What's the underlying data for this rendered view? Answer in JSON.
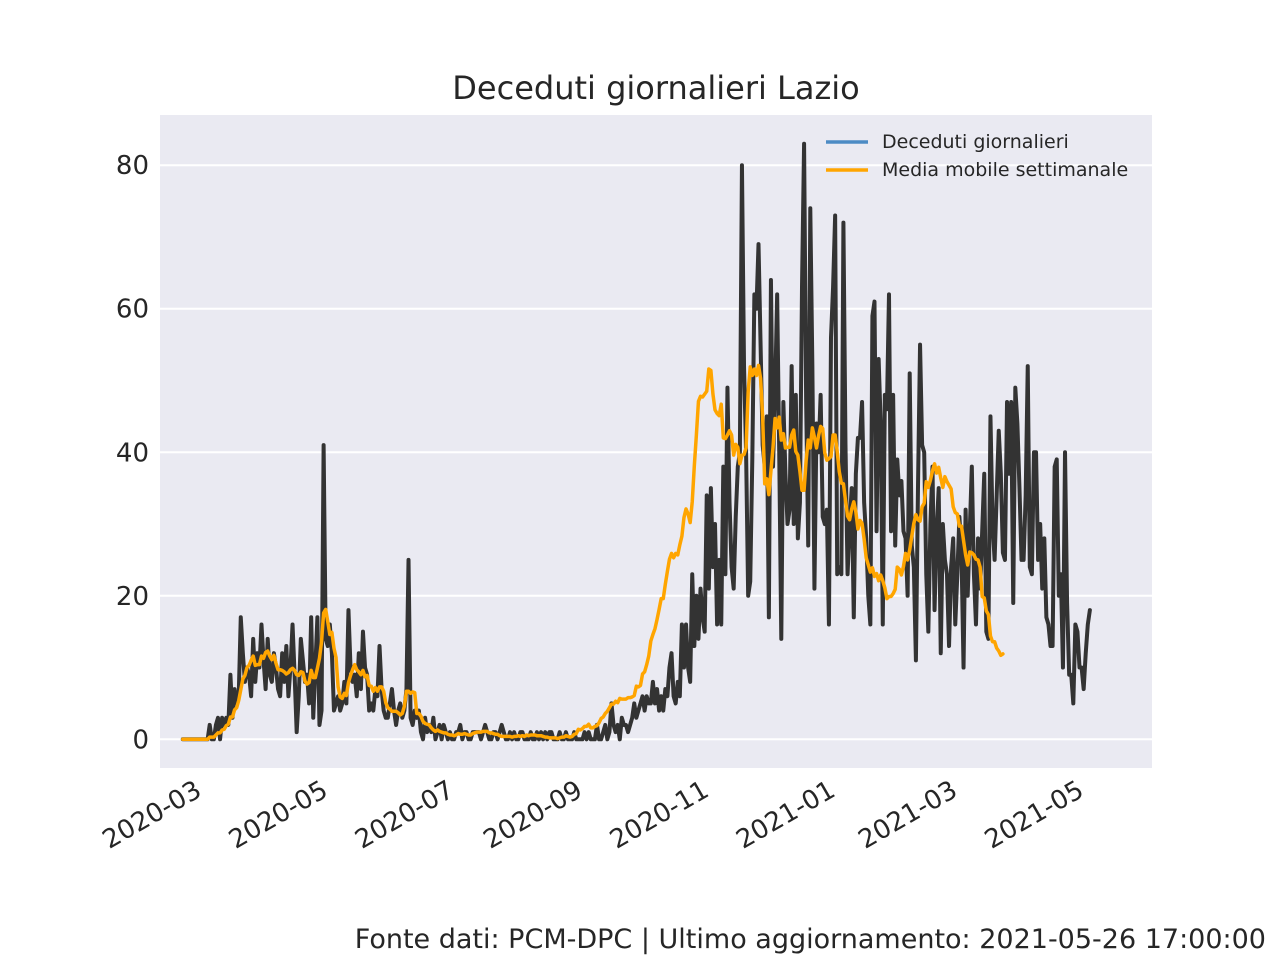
{
  "chart_data": {
    "type": "line",
    "title": "Deceduti giornalieri Lazio",
    "xlabel": "",
    "ylabel": "",
    "x_start": "2020-02-24",
    "x_end": "2021-05-26",
    "xlim": [
      "2020-02-13",
      "2021-06-06"
    ],
    "ylim": [
      -4,
      87
    ],
    "y_ticks": [
      0,
      20,
      40,
      60,
      80
    ],
    "x_ticks": [
      "2020-03",
      "2020-05",
      "2020-07",
      "2020-09",
      "2020-11",
      "2021-01",
      "2021-03",
      "2021-05"
    ],
    "grid": true,
    "legend_position": "top-right",
    "colors": {
      "plot_bg": "#eaeaf2",
      "daily": "#333333",
      "moving_avg": "#ffa500",
      "legend_daily": "#4c8bc4"
    },
    "series": [
      {
        "name": "Deceduti giornalieri",
        "values": [
          0,
          0,
          0,
          0,
          0,
          0,
          0,
          0,
          0,
          0,
          0,
          0,
          0,
          2,
          0,
          0,
          2,
          3,
          0,
          3,
          2,
          3,
          2,
          9,
          3,
          7,
          5,
          6,
          17,
          12,
          8,
          10,
          9,
          6,
          14,
          8,
          12,
          10,
          16,
          11,
          7,
          14,
          9,
          8,
          12,
          10,
          7,
          6,
          12,
          8,
          13,
          6,
          10,
          16,
          9,
          1,
          6,
          14,
          11,
          8,
          9,
          5,
          17,
          3,
          10,
          17,
          2,
          4,
          41,
          14,
          13,
          16,
          12,
          4,
          5,
          6,
          4,
          5,
          8,
          5,
          18,
          10,
          8,
          9,
          6,
          12,
          7,
          15,
          10,
          9,
          4,
          5,
          4,
          7,
          6,
          13,
          7,
          4,
          3,
          3,
          5,
          7,
          4,
          2,
          4,
          5,
          3,
          4,
          7,
          25,
          3,
          2,
          4,
          3,
          4,
          1,
          0,
          3,
          1,
          2,
          1,
          3,
          0,
          1,
          2,
          0,
          2,
          1,
          0,
          1,
          0,
          0,
          1,
          1,
          2,
          0,
          1,
          1,
          0,
          0,
          1,
          1,
          1,
          1,
          0,
          1,
          2,
          1,
          0,
          0,
          1,
          1,
          0,
          1,
          2,
          1,
          0,
          0,
          1,
          0,
          1,
          0,
          0,
          1,
          1,
          0,
          0,
          0,
          1,
          0,
          0,
          1,
          0,
          1,
          0,
          1,
          0,
          1,
          1,
          0,
          0,
          0,
          1,
          0,
          0,
          1,
          0,
          0,
          0,
          1,
          0,
          0,
          0,
          0,
          1,
          0,
          1,
          0,
          0,
          0,
          2,
          0,
          0,
          1,
          2,
          0,
          1,
          5,
          2,
          1,
          2,
          0,
          3,
          2,
          2,
          1,
          2,
          3,
          5,
          3,
          4,
          5,
          6,
          4,
          6,
          5,
          5,
          8,
          5,
          7,
          4,
          6,
          4,
          7,
          6,
          10,
          12,
          6,
          5,
          8,
          6,
          16,
          10,
          16,
          10,
          8,
          23,
          13,
          20,
          14,
          21,
          17,
          15,
          34,
          21,
          35,
          24,
          30,
          16,
          25,
          16,
          38,
          23,
          49,
          33,
          24,
          21,
          31,
          38,
          40,
          80,
          52,
          40,
          20,
          22,
          39,
          62,
          60,
          69,
          55,
          41,
          38,
          45,
          17,
          64,
          38,
          48,
          62,
          40,
          14,
          47,
          37,
          30,
          32,
          52,
          30,
          48,
          28,
          33,
          63,
          83,
          47,
          27,
          74,
          52,
          21,
          44,
          40,
          48,
          31,
          30,
          32,
          16,
          56,
          63,
          73,
          23,
          24,
          23,
          72,
          41,
          23,
          30,
          35,
          17,
          37,
          42,
          42,
          47,
          33,
          28,
          20,
          16,
          59,
          61,
          29,
          53,
          44,
          16,
          48,
          46,
          62,
          29,
          48,
          27,
          39,
          34,
          36,
          29,
          28,
          20,
          51,
          27,
          24,
          11,
          35,
          55,
          41,
          40,
          23,
          15,
          30,
          38,
          18,
          29,
          35,
          12,
          30,
          25,
          23,
          13,
          24,
          28,
          16,
          23,
          31,
          26,
          10,
          32,
          20,
          29,
          38,
          23,
          16,
          28,
          21,
          29,
          37,
          15,
          14,
          45,
          30,
          25,
          34,
          43,
          37,
          26,
          25,
          47,
          37,
          47,
          19,
          49,
          44,
          35,
          25,
          25,
          34,
          52,
          24,
          23,
          40,
          40,
          25,
          30,
          21,
          28,
          17,
          16,
          13,
          13,
          38,
          39,
          20,
          23,
          10,
          40,
          19,
          9,
          9,
          5,
          16,
          15,
          10,
          10,
          7,
          12,
          16,
          18
        ]
      },
      {
        "name": "Media mobile settimanale",
        "values": [
          0,
          0,
          0,
          0,
          0,
          0,
          0,
          0,
          0,
          0,
          0,
          0,
          0,
          0.3,
          0.3,
          0.3,
          0.6,
          0.9,
          0.9,
          1.3,
          1.4,
          1.9,
          2.1,
          3.1,
          3.1,
          4.1,
          4.4,
          5.4,
          6.9,
          8.4,
          8.9,
          10,
          10.3,
          11,
          11.6,
          10.3,
          10.4,
          10.4,
          11.6,
          11.3,
          12.1,
          12.3,
          11.6,
          11.1,
          11.7,
          10.6,
          9.7,
          9.7,
          9.6,
          9.4,
          9.1,
          9.3,
          9.7,
          9.9,
          9.6,
          9,
          8.9,
          9.4,
          9.3,
          8.1,
          7.7,
          7.9,
          9.6,
          8.6,
          8.6,
          9.9,
          11.3,
          13.6,
          17.6,
          18.1,
          16.4,
          14.6,
          14.9,
          12.7,
          11.4,
          7.3,
          5.9,
          5.7,
          6.4,
          6.1,
          7.9,
          8.9,
          9.7,
          10.4,
          9.7,
          9.4,
          9,
          9.6,
          8.7,
          8.9,
          7.5,
          7.4,
          6.7,
          7.2,
          6.7,
          7.3,
          7.3,
          6.7,
          5.1,
          4.4,
          4.2,
          3.9,
          3.9,
          3.9,
          3.7,
          3.4,
          3.6,
          4.6,
          6.7,
          6.7,
          6.4,
          6.6,
          6.5,
          3.6,
          3.6,
          3.2,
          2.5,
          2.2,
          2.1,
          2,
          1.6,
          1.3,
          1.1,
          1.3,
          1.1,
          1,
          0.9,
          0.9,
          0.7,
          0.6,
          0.6,
          0.5,
          0.6,
          0.8,
          0.7,
          0.7,
          0.8,
          0.7,
          0.6,
          0.6,
          0.8,
          0.9,
          1,
          1,
          1,
          1.1,
          1.1,
          1.1,
          0.9,
          0.9,
          0.8,
          0.7,
          0.7,
          0.5,
          0.4,
          0.4,
          0.4,
          0.4,
          0.4,
          0.3,
          0.4,
          0.4,
          0.5,
          0.4,
          0.5,
          0.4,
          0.6,
          0.5,
          0.6,
          0.6,
          0.6,
          0.5,
          0.5,
          0.5,
          0.4,
          0.3,
          0.3,
          0.2,
          0.2,
          0.2,
          0.2,
          0.1,
          0.2,
          0.3,
          0.3,
          0.5,
          0.4,
          0.3,
          0.4,
          0.7,
          0.8,
          1.4,
          1.3,
          1.5,
          1.8,
          1.8,
          2.1,
          1.6,
          1.6,
          1.8,
          1.9,
          2.3,
          2.9,
          3.1,
          3.6,
          3.9,
          4.4,
          4.9,
          4.9,
          5.3,
          5.1,
          5.7,
          5.6,
          5.6,
          5.6,
          5.8,
          5.8,
          5.9,
          6.1,
          7.4,
          7.3,
          7.5,
          9.1,
          9.4,
          10.4,
          11.6,
          13.7,
          14.6,
          15.4,
          16.7,
          18.1,
          19.6,
          19.6,
          21.6,
          23.4,
          25.1,
          25.9,
          25.3,
          25.9,
          25.7,
          27.1,
          28.3,
          30.9,
          32.1,
          31.4,
          30.2,
          33.1,
          38.1,
          42.4,
          47.1,
          47.8,
          47.7,
          48.1,
          48.5,
          51.6,
          51.4,
          48.1,
          45.9,
          45.4,
          45.1,
          46.7,
          42,
          41.9,
          42.4,
          43,
          42.4,
          39.6,
          41.1,
          40.7,
          38.4,
          39.6,
          39.7,
          40.6,
          48.4,
          51.9,
          50.7,
          51.6,
          50.7,
          52.1,
          50.3,
          44.9,
          35.6,
          36.3,
          34.1,
          37.4,
          40.7,
          44.7,
          43.4,
          44.9,
          41.7,
          42.6,
          40.6,
          40.7,
          40.7,
          42.4,
          43.1,
          40.1,
          39.6,
          37.3,
          34.7,
          34.7,
          38.9,
          41.7,
          40.6,
          43.4,
          42.1,
          40.6,
          42.3,
          43.6,
          43.3,
          39.9,
          38.9,
          39.1,
          39.4,
          42.4,
          42.4,
          40.1,
          37.3,
          35.7,
          35.6,
          33.3,
          31.1,
          30.6,
          32.1,
          33.1,
          31.7,
          29.3,
          30.5,
          30.1,
          27.9,
          25.3,
          24.3,
          23.3,
          23.9,
          22.7,
          23.1,
          22.1,
          22.9,
          22.1,
          21.1,
          19.6,
          19.9,
          19.9,
          20.3,
          20.9,
          24,
          23.7,
          22.9,
          24.1,
          25.9,
          25,
          26.4,
          28.3,
          30.1,
          31.3,
          30.6,
          30.4,
          32.4,
          32.9,
          35.9,
          35.1,
          36.1,
          37.4,
          38.4,
          37.1,
          37.9,
          36.4,
          35.1,
          36.6,
          35.9,
          35.4,
          34.9,
          32.4,
          31.6,
          31.4,
          29.7,
          29.7,
          27.7,
          25.7,
          24.3,
          26.1,
          26,
          25.7,
          25.1,
          25,
          24,
          19.9,
          19.7,
          17.9,
          17.4,
          14.4,
          13.6,
          13.6,
          12.7,
          12.3,
          11.7,
          11.9
        ]
      }
    ]
  },
  "footer": "Fonte dati: PCM-DPC | Ultimo aggiornamento: 2021-05-26 17:00:00"
}
